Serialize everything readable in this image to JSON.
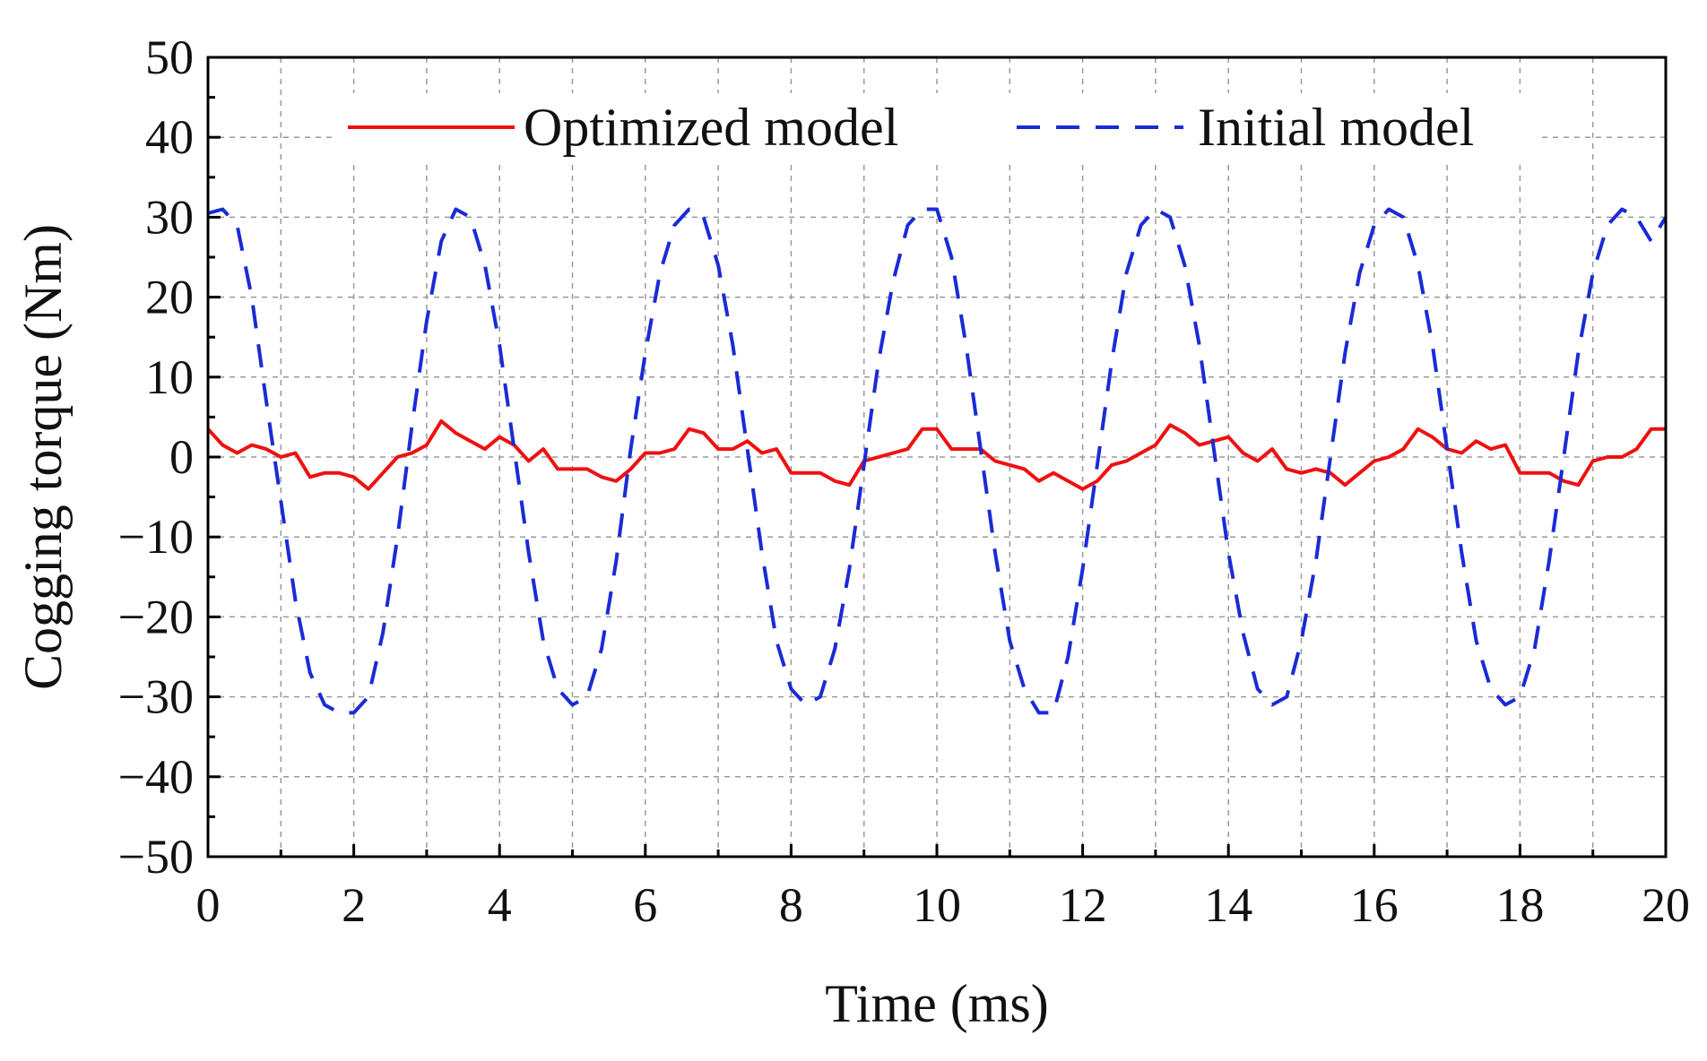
{
  "chart_data": {
    "type": "line",
    "xlabel": "Time (ms)",
    "ylabel": "Cogging torque (Nm)",
    "xlim": [
      0,
      20
    ],
    "ylim": [
      -50,
      50
    ],
    "x_ticks": [
      0,
      2,
      4,
      6,
      8,
      10,
      12,
      14,
      16,
      18,
      20
    ],
    "x_tick_labels": [
      "0",
      "2",
      "4",
      "6",
      "8",
      "10",
      "12",
      "14",
      "16",
      "18",
      "20"
    ],
    "y_ticks": [
      -50,
      -40,
      -30,
      -20,
      -10,
      0,
      10,
      20,
      30,
      40,
      50
    ],
    "y_tick_labels": [
      "−50",
      "−40",
      "−30",
      "−20",
      "−10",
      "0",
      "10",
      "20",
      "30",
      "40",
      "50"
    ],
    "grid": true,
    "legend_position": "top",
    "series": [
      {
        "name": "Optimized model",
        "color": "#ee1111",
        "style": "solid",
        "x": [
          0,
          0.2,
          0.4,
          0.6,
          0.8,
          1.0,
          1.2,
          1.4,
          1.6,
          1.8,
          2.0,
          2.2,
          2.4,
          2.6,
          2.8,
          3.0,
          3.2,
          3.4,
          3.6,
          3.8,
          4.0,
          4.2,
          4.4,
          4.6,
          4.8,
          5.0,
          5.2,
          5.4,
          5.6,
          5.8,
          6.0,
          6.2,
          6.4,
          6.6,
          6.8,
          7.0,
          7.2,
          7.4,
          7.6,
          7.8,
          8.0,
          8.2,
          8.4,
          8.6,
          8.8,
          9.0,
          9.2,
          9.4,
          9.6,
          9.8,
          10.0,
          10.2,
          10.4,
          10.6,
          10.8,
          11.0,
          11.2,
          11.4,
          11.6,
          11.8,
          12.0,
          12.2,
          12.4,
          12.6,
          12.8,
          13.0,
          13.2,
          13.4,
          13.6,
          13.8,
          14.0,
          14.2,
          14.4,
          14.6,
          14.8,
          15.0,
          15.2,
          15.4,
          15.6,
          15.8,
          16.0,
          16.2,
          16.4,
          16.6,
          16.8,
          17.0,
          17.2,
          17.4,
          17.6,
          17.8,
          18.0,
          18.2,
          18.4,
          18.6,
          18.8,
          19.0,
          19.2,
          19.4,
          19.6,
          19.8,
          20.0
        ],
        "values": [
          3.5,
          1.5,
          0.5,
          1.5,
          1.0,
          0.0,
          0.5,
          -2.5,
          -2.0,
          -2.0,
          -2.5,
          -4.0,
          -2.0,
          0.0,
          0.5,
          1.5,
          4.5,
          3.0,
          2.0,
          1.0,
          2.5,
          1.5,
          -0.5,
          1.0,
          -1.5,
          -1.5,
          -1.5,
          -2.5,
          -3.0,
          -1.5,
          0.5,
          0.5,
          1.0,
          3.5,
          3.0,
          1.0,
          1.0,
          2.0,
          0.5,
          1.0,
          -2.0,
          -2.0,
          -2.0,
          -3.0,
          -3.5,
          -0.5,
          0.0,
          0.5,
          1.0,
          3.5,
          3.5,
          1.0,
          1.0,
          1.0,
          -0.5,
          -1.0,
          -1.5,
          -3.0,
          -2.0,
          -3.0,
          -4.0,
          -3.0,
          -1.0,
          -0.5,
          0.5,
          1.5,
          4.0,
          3.0,
          1.5,
          2.0,
          2.5,
          0.5,
          -0.5,
          1.0,
          -1.5,
          -2.0,
          -1.5,
          -2.0,
          -3.5,
          -2.0,
          -0.5,
          0.0,
          1.0,
          3.5,
          2.5,
          1.0,
          0.5,
          2.0,
          1.0,
          1.5,
          -2.0,
          -2.0,
          -2.0,
          -3.0,
          -3.5,
          -0.5,
          0.0,
          0.0,
          1.0,
          3.5,
          3.5
        ]
      },
      {
        "name": "Initial model",
        "color": "#1a2bd6",
        "style": "dashed",
        "x": [
          0,
          0.2,
          0.4,
          0.6,
          0.8,
          1.0,
          1.2,
          1.4,
          1.6,
          1.8,
          2.0,
          2.2,
          2.4,
          2.6,
          2.8,
          3.0,
          3.2,
          3.4,
          3.6,
          3.8,
          4.0,
          4.2,
          4.4,
          4.6,
          4.8,
          5.0,
          5.2,
          5.4,
          5.6,
          5.8,
          6.0,
          6.2,
          6.4,
          6.6,
          6.8,
          7.0,
          7.2,
          7.4,
          7.6,
          7.8,
          8.0,
          8.2,
          8.4,
          8.6,
          8.8,
          9.0,
          9.2,
          9.4,
          9.6,
          9.8,
          10.0,
          10.2,
          10.4,
          10.6,
          10.8,
          11.0,
          11.2,
          11.4,
          11.6,
          11.8,
          12.0,
          12.2,
          12.4,
          12.6,
          12.8,
          13.0,
          13.2,
          13.4,
          13.6,
          13.8,
          14.0,
          14.2,
          14.4,
          14.6,
          14.8,
          15.0,
          15.2,
          15.4,
          15.6,
          15.8,
          16.0,
          16.2,
          16.4,
          16.6,
          16.8,
          17.0,
          17.2,
          17.4,
          17.6,
          17.8,
          18.0,
          18.2,
          18.4,
          18.6,
          18.8,
          19.0,
          19.2,
          19.4,
          19.6,
          19.8,
          20.0
        ],
        "values": [
          30.5,
          31.0,
          29.0,
          20.0,
          7.0,
          -5.5,
          -18.0,
          -27.0,
          -31.0,
          -32.0,
          -32.0,
          -30.0,
          -22.0,
          -10.0,
          4.0,
          17.0,
          27.0,
          31.0,
          30.0,
          24.0,
          14.0,
          1.0,
          -12.0,
          -23.0,
          -29.0,
          -31.0,
          -30.0,
          -24.0,
          -13.0,
          1.0,
          13.0,
          23.0,
          29.0,
          31.0,
          30.0,
          24.0,
          14.0,
          1.0,
          -12.0,
          -23.0,
          -29.0,
          -31.0,
          -30.0,
          -24.0,
          -14.0,
          -1.0,
          12.0,
          22.0,
          29.0,
          31.0,
          31.0,
          25.0,
          14.0,
          1.0,
          -12.0,
          -23.0,
          -29.0,
          -32.0,
          -32.0,
          -25.0,
          -14.0,
          -1.0,
          12.0,
          23.0,
          29.0,
          31.0,
          30.0,
          24.0,
          14.0,
          1.0,
          -12.0,
          -22.0,
          -29.0,
          -31.0,
          -30.0,
          -23.0,
          -13.0,
          0.0,
          13.0,
          23.0,
          29.0,
          31.0,
          30.0,
          24.0,
          14.0,
          1.0,
          -12.0,
          -23.0,
          -29.0,
          -31.0,
          -30.0,
          -24.0,
          -13.0,
          0.0,
          13.0,
          23.0,
          29.0,
          31.0,
          30.0,
          27.0,
          30.0
        ]
      }
    ]
  }
}
